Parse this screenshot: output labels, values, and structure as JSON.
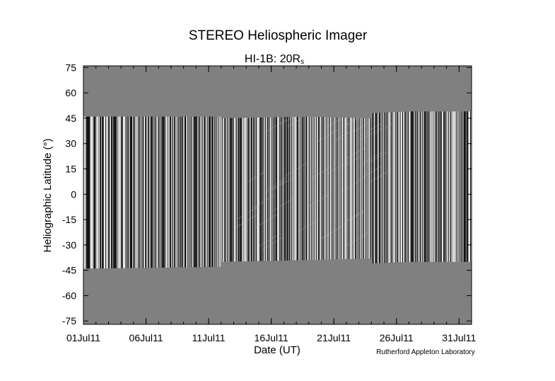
{
  "chart_data": {
    "type": "heatmap",
    "title": "STEREO Heliospheric Imager",
    "subtitle_main": "HI-1B: 20R",
    "subtitle_sub": "s",
    "xlabel": "Date (UT)",
    "ylabel": "Heliographic Latitude (°)",
    "credit": "Rutherford Appleton Laboratory",
    "x_ticks": [
      "01Jul11",
      "06Jul11",
      "11Jul11",
      "16Jul11",
      "21Jul11",
      "26Jul11",
      "31Jul11"
    ],
    "xlim": [
      "01Jul11",
      "01Aug11"
    ],
    "y_ticks": [
      75,
      60,
      45,
      30,
      15,
      0,
      -15,
      -30,
      -45,
      -60,
      -75
    ],
    "ylim": [
      -77,
      76
    ],
    "background_color": "#808080",
    "data_colormap": "grayscale running-difference (black to white)",
    "data_extent": [
      {
        "date": "01Jul11",
        "lat_top": 46,
        "lat_bottom": -44
      },
      {
        "date": "12Jul11",
        "lat_top": 46,
        "lat_bottom": -43
      },
      {
        "date": "12Jul11",
        "lat_top": 45,
        "lat_bottom": -40
      },
      {
        "date": "19Jul11",
        "lat_top": 46,
        "lat_bottom": -39
      },
      {
        "date": "24Jul11",
        "lat_top": 45,
        "lat_bottom": -38
      },
      {
        "date": "24Jul11",
        "lat_top": 48,
        "lat_bottom": -41
      },
      {
        "date": "27Jul11",
        "lat_top": 49,
        "lat_bottom": -40
      },
      {
        "date": "01Aug11",
        "lat_top": 49,
        "lat_bottom": -40
      }
    ]
  }
}
